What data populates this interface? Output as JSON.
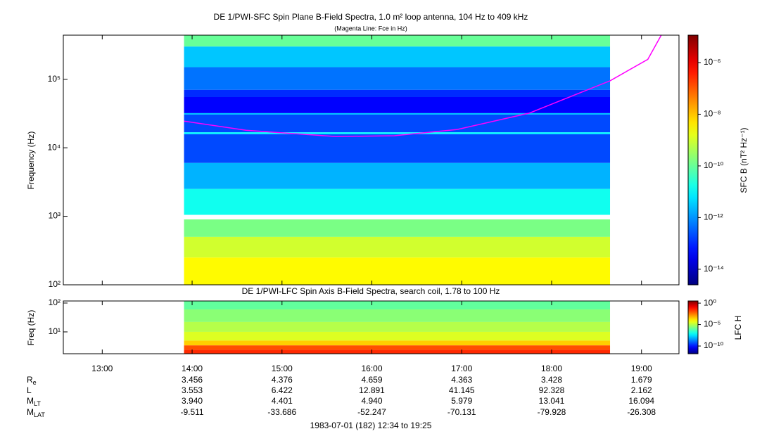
{
  "chart_data": [
    {
      "type": "spectrogram",
      "title": "DE 1/PWI-SFC  Spin Plane B-Field Spectra, 1.0 m² loop antenna, 104 Hz to 409 kHz",
      "subtitle": "(Magenta Line: Fce in Hz)",
      "y_label": "Frequency (Hz)",
      "log_y": true,
      "ylim": [
        100,
        440000
      ],
      "yticks": [
        {
          "value": 100,
          "label": "10²"
        },
        {
          "value": 1000,
          "label": "10³"
        },
        {
          "value": 10000,
          "label": "10⁴"
        },
        {
          "value": 100000,
          "label": "10⁵"
        }
      ],
      "time_range": [
        13.91,
        18.65
      ],
      "bands_lo": [
        300000,
        150000,
        70000,
        55000,
        32000,
        30500,
        16800,
        15800,
        6000,
        2500,
        1050,
        500,
        250,
        100
      ],
      "bands_hi": [
        440000,
        300000,
        150000,
        70000,
        55000,
        32000,
        30500,
        16800,
        15800,
        6000,
        2500,
        900,
        500,
        250
      ],
      "values": [
        1e-10,
        3e-12,
        5e-13,
        1e-13,
        4e-14,
        3e-12,
        2e-13,
        1e-11,
        2e-13,
        2e-12,
        1.5e-11,
        1.5e-10,
        1e-09,
        3e-09
      ],
      "series": [
        {
          "color": "#ff00ff",
          "x": [
            13.91,
            14.6,
            15.6,
            16.25,
            16.95,
            17.75,
            18.65,
            19.07,
            19.22
          ],
          "values": [
            24500,
            18000,
            14600,
            15000,
            18500,
            32000,
            95000,
            195000,
            440000
          ]
        }
      ],
      "colorbar": {
        "label": "SFC B (nT² Hz⁻¹)",
        "clim": [
          2.5e-15,
          1.15e-05
        ],
        "ticks": [
          {
            "value": 1e-14,
            "label": "10⁻¹⁴"
          },
          {
            "value": 1e-12,
            "label": "10⁻¹²"
          },
          {
            "value": 1e-10,
            "label": "10⁻¹⁰"
          },
          {
            "value": 1e-08,
            "label": "10⁻⁸"
          },
          {
            "value": 1e-06,
            "label": "10⁻⁶"
          }
        ]
      }
    },
    {
      "type": "spectrogram",
      "title": "DE 1/PWI-LFC  Spin Axis B-Field Spectra, search coil, 1.78 to 100 Hz",
      "y_label": "Freq (Hz)",
      "log_y": true,
      "ylim": [
        1.75,
        118
      ],
      "yticks": [
        {
          "value": 10,
          "label": "10¹"
        },
        {
          "value": 100,
          "label": "10²"
        }
      ],
      "xlim": [
        12.567,
        19.417
      ],
      "xticks": [
        {
          "value": 13,
          "label": "13:00"
        },
        {
          "value": 14,
          "label": "14:00"
        },
        {
          "value": 15,
          "label": "15:00"
        },
        {
          "value": 16,
          "label": "16:00"
        },
        {
          "value": 17,
          "label": "17:00"
        },
        {
          "value": 18,
          "label": "18:00"
        },
        {
          "value": 19,
          "label": "19:00"
        }
      ],
      "time_range": [
        13.91,
        18.65
      ],
      "bands_lo": [
        60,
        22,
        10,
        5,
        3.4,
        2.4,
        1.75
      ],
      "bands_hi": [
        118,
        60,
        22,
        10,
        5,
        3.4,
        2.4
      ],
      "values": [
        1e-06,
        3e-06,
        1e-05,
        3e-05,
        0.0003,
        0.01,
        0.03
      ],
      "colorbar": {
        "label": "LFC H",
        "clim": [
          1.6e-12,
          3.2
        ],
        "ticks": [
          {
            "value": 1e-10,
            "label": "10⁻¹⁰"
          },
          {
            "value": 1e-05,
            "label": "10⁻⁵"
          },
          {
            "value": 1,
            "label": "10⁰"
          }
        ]
      }
    }
  ],
  "ephemeris": {
    "labels": [
      {
        "main": "R",
        "sub": "e"
      },
      {
        "main": "L"
      },
      {
        "main": "M",
        "sub": "LT"
      },
      {
        "main": "M",
        "sub": "LAT"
      }
    ],
    "rows": [
      [
        "3.456",
        "4.376",
        "4.659",
        "4.363",
        "3.428",
        "1.679"
      ],
      [
        "3.553",
        "6.422",
        "12.891",
        "41.145",
        "92.328",
        "2.162"
      ],
      [
        "3.940",
        "4.401",
        "4.940",
        "5.979",
        "13.041",
        "16.094"
      ],
      [
        "-9.511",
        "-33.686",
        "-52.247",
        "-70.131",
        "-79.928",
        "-26.308"
      ]
    ]
  },
  "footer": "1983-07-01 (182) 12:34 to 19:25"
}
